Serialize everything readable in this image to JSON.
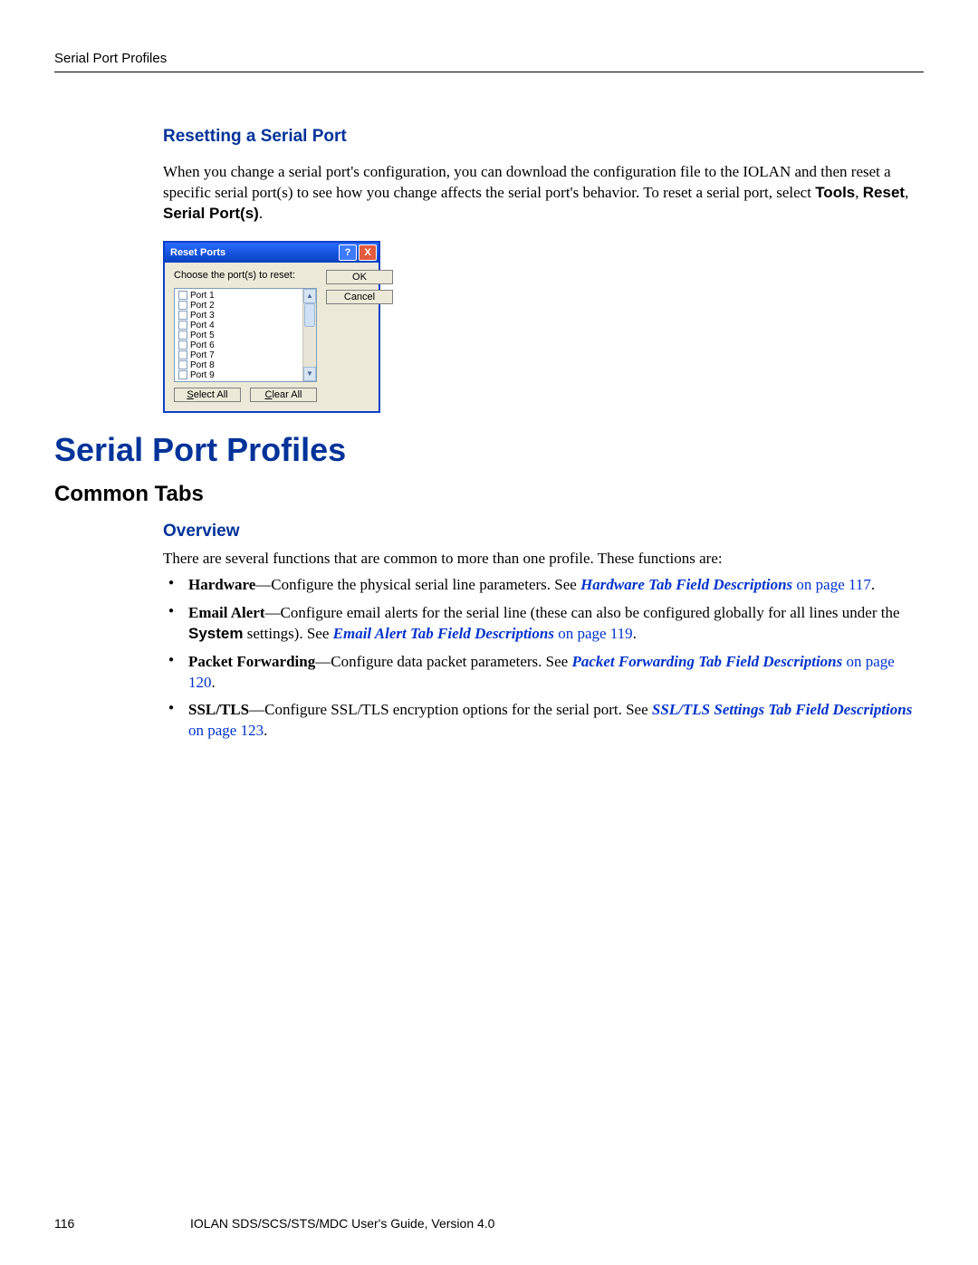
{
  "header": {
    "running_head": "Serial Port Profiles"
  },
  "colors": {
    "heading_blue": "#003399",
    "link_blue": "#0033cc"
  },
  "section_reset": {
    "title": "Resetting a Serial Port",
    "para_pre": "When you change a serial port's configuration, you can download the configuration file to the IOLAN and then reset a specific serial port(s) to see how you change affects the serial port's behavior. To reset a serial port, select ",
    "menu1": "Tools",
    "sep1": ", ",
    "menu2": "Reset",
    "sep2": ", ",
    "menu3": "Serial Port(s)",
    "end": "."
  },
  "dialog": {
    "title": "Reset Ports",
    "help_glyph": "?",
    "close_glyph": "X",
    "choose_label": "Choose the port(s) to reset:",
    "ports": [
      "Port 1",
      "Port 2",
      "Port 3",
      "Port 4",
      "Port 5",
      "Port 6",
      "Port 7",
      "Port 8",
      "Port 9"
    ],
    "ok": "OK",
    "cancel": "Cancel",
    "select_all": "Select All",
    "clear_all": "Clear All"
  },
  "main": {
    "title": "Serial Port Profiles",
    "subtitle": "Common Tabs",
    "overview_heading": "Overview",
    "overview_intro": "There are several functions that are common to more than one profile. These functions are:",
    "items": [
      {
        "term": "Hardware",
        "desc_pre": "—Configure the physical serial line parameters. See ",
        "link": "Hardware Tab Field Descriptions",
        "pageref": " on page 117",
        "end": "."
      },
      {
        "term": "Email Alert",
        "desc_pre": "—Configure email alerts for the serial line (these can also be configured globally for all lines under the ",
        "inline_bold": "System",
        "desc_mid": " settings). See ",
        "link": "Email Alert Tab Field Descriptions",
        "pageref": " on page 119",
        "end": "."
      },
      {
        "term": "Packet Forwarding",
        "desc_pre": "—Configure data packet parameters. See ",
        "link": "Packet Forwarding Tab Field Descriptions",
        "pageref": " on page 120",
        "end": "."
      },
      {
        "term": "SSL/TLS",
        "desc_pre": "—Configure SSL/TLS encryption options for the serial port. See ",
        "link": "SSL/TLS Settings Tab Field Descriptions",
        "pageref": " on page 123",
        "end": "."
      }
    ]
  },
  "footer": {
    "page_number": "116",
    "text": "IOLAN SDS/SCS/STS/MDC User's Guide, Version 4.0"
  }
}
